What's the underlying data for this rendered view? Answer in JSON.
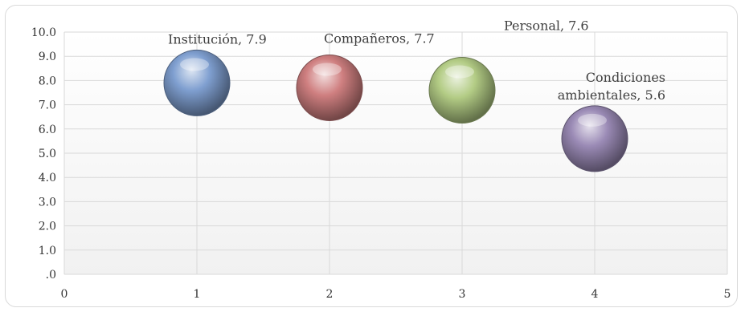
{
  "chart_data": {
    "type": "bubble",
    "xlim": [
      0,
      5
    ],
    "ylim": [
      0,
      10
    ],
    "x_ticks": [
      "0",
      "1",
      "2",
      "3",
      "4",
      "5"
    ],
    "y_ticks": [
      ".0",
      "1.0",
      "2.0",
      "3.0",
      "4.0",
      "5.0",
      "6.0",
      "7.0",
      "8.0",
      "9.0",
      "10.0"
    ],
    "grid": true,
    "legend": "none",
    "points": [
      {
        "label": "Institución, 7.9",
        "x": 1,
        "y": 7.9,
        "color": "#7f9fd0"
      },
      {
        "label": "Compañeros, 7.7",
        "x": 2,
        "y": 7.7,
        "color": "#cf7f80"
      },
      {
        "label": "Personal, 7.6",
        "x": 3,
        "y": 7.6,
        "color": "#b3cc85"
      },
      {
        "label_lines": [
          "Condiciones",
          "ambientales, 5.6"
        ],
        "x": 4,
        "y": 5.6,
        "color": "#9a8ab5"
      }
    ]
  }
}
